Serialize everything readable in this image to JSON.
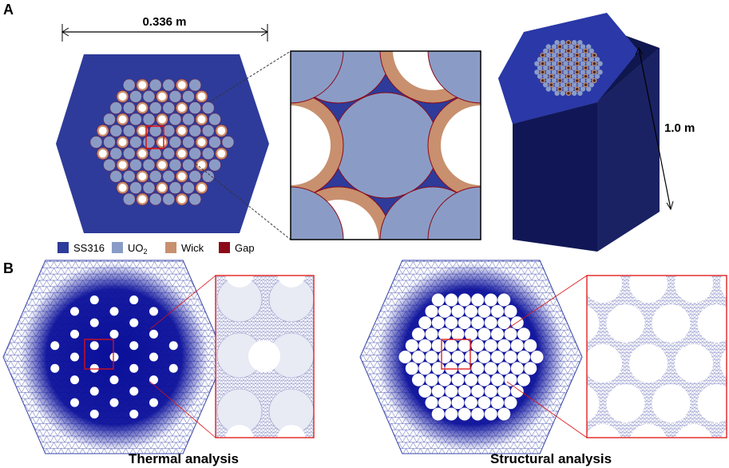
{
  "panel_a": {
    "label": "A",
    "dimension_width": "0.336 m",
    "dimension_height": "1.0 m",
    "legend": [
      {
        "label": "SS316"
      },
      {
        "label": "UO",
        "subscript": "2"
      },
      {
        "label": "Wick"
      },
      {
        "label": "Gap"
      }
    ]
  },
  "panel_b": {
    "label": "B",
    "captions": [
      "Thermal analysis",
      "Structural analysis"
    ]
  }
}
